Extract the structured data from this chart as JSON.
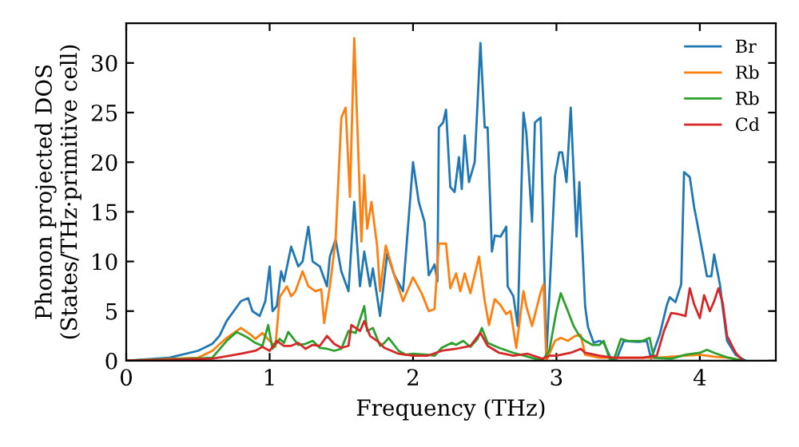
{
  "chart_data": {
    "type": "line",
    "xlabel": "Frequency (THz)",
    "ylabel": "Phonon projected DOS\n(States/THz·primitive cell)",
    "xlim": [
      0,
      4.53
    ],
    "ylim": [
      0,
      34
    ],
    "xticks": [
      0,
      1,
      2,
      3,
      4
    ],
    "yticks": [
      0,
      5,
      10,
      15,
      20,
      25,
      30
    ],
    "grid": false,
    "legend": "top right",
    "marker": "none",
    "line_style": "solid",
    "series": [
      {
        "name": "Br",
        "color": "#1f77b4",
        "x": [
          0,
          0.3,
          0.5,
          0.6,
          0.65,
          0.7,
          0.75,
          0.8,
          0.85,
          0.88,
          0.93,
          0.97,
          1.0,
          1.02,
          1.05,
          1.08,
          1.1,
          1.15,
          1.2,
          1.23,
          1.27,
          1.3,
          1.35,
          1.4,
          1.42,
          1.46,
          1.5,
          1.55,
          1.59,
          1.63,
          1.66,
          1.7,
          1.72,
          1.77,
          1.82,
          1.87,
          1.93,
          2.0,
          2.04,
          2.08,
          2.11,
          2.15,
          2.17,
          2.18,
          2.21,
          2.23,
          2.26,
          2.29,
          2.32,
          2.34,
          2.36,
          2.39,
          2.43,
          2.47,
          2.5,
          2.52,
          2.55,
          2.57,
          2.61,
          2.65,
          2.66,
          2.7,
          2.73,
          2.77,
          2.79,
          2.83,
          2.85,
          2.89,
          2.93,
          2.99,
          3.02,
          3.04,
          3.07,
          3.1,
          3.12,
          3.14,
          3.16,
          3.2,
          3.22,
          3.26,
          3.3,
          3.33,
          3.38,
          3.42,
          3.47,
          3.57,
          3.63,
          3.66,
          3.72,
          3.77,
          3.79,
          3.83,
          3.87,
          3.89,
          3.93,
          3.96,
          3.98,
          4.05,
          4.08,
          4.1,
          4.14,
          4.16,
          4.19,
          4.25,
          4.32
        ],
        "values": [
          0,
          0.3,
          1,
          1.7,
          2.5,
          4,
          5,
          6,
          6.3,
          5,
          4.5,
          6,
          9.5,
          5,
          5.5,
          9,
          8,
          11.5,
          9.5,
          10,
          13.5,
          10,
          9.5,
          7.5,
          10.5,
          12.2,
          9,
          7,
          16,
          7.5,
          11,
          7.5,
          9.3,
          4.5,
          10.8,
          8.6,
          7,
          20,
          16,
          14,
          8.6,
          9.7,
          8,
          23.5,
          24,
          25.3,
          17.5,
          17,
          20.5,
          17.3,
          22.7,
          18,
          20,
          32,
          23.5,
          23.5,
          11,
          12.6,
          12.5,
          13.5,
          7.5,
          6.5,
          3.5,
          25,
          23,
          14,
          24,
          24.5,
          0.3,
          18.6,
          21,
          21,
          18,
          25.5,
          19,
          12.5,
          18,
          5.5,
          3.4,
          1.8,
          2,
          1.8,
          0.2,
          0.2,
          2,
          1.9,
          2,
          0.2,
          2.6,
          5.6,
          6.4,
          5.9,
          7.7,
          19,
          18.5,
          15.5,
          14,
          8.5,
          8.5,
          10.7,
          7.7,
          5.3,
          2,
          0.6,
          0
        ]
      },
      {
        "name": "Rb",
        "color": "#ff7f0e",
        "x": [
          0,
          0.5,
          0.6,
          0.7,
          0.8,
          0.87,
          0.9,
          0.95,
          1.0,
          1.04,
          1.07,
          1.12,
          1.15,
          1.18,
          1.23,
          1.27,
          1.32,
          1.36,
          1.38,
          1.42,
          1.46,
          1.5,
          1.53,
          1.56,
          1.59,
          1.62,
          1.64,
          1.66,
          1.68,
          1.71,
          1.75,
          1.77,
          1.81,
          1.87,
          1.93,
          2.0,
          2.06,
          2.11,
          2.15,
          2.18,
          2.23,
          2.26,
          2.3,
          2.33,
          2.36,
          2.4,
          2.46,
          2.5,
          2.53,
          2.57,
          2.61,
          2.65,
          2.68,
          2.72,
          2.77,
          2.79,
          2.83,
          2.89,
          2.91,
          2.93,
          2.99,
          3.03,
          3.08,
          3.13,
          3.17,
          3.2,
          3.3,
          3.5,
          3.7,
          3.9,
          4.0,
          4.1,
          4.2,
          4.3
        ],
        "values": [
          0,
          0.3,
          1,
          2.3,
          3.3,
          2.6,
          2.2,
          2.8,
          2,
          1.4,
          6.4,
          7.5,
          6.5,
          7,
          9,
          7.5,
          7,
          7.2,
          3.8,
          7.5,
          12.2,
          24.5,
          25.5,
          16.5,
          32.5,
          20.3,
          12,
          18.7,
          13.3,
          16,
          11.5,
          7,
          11.6,
          8.6,
          6,
          8.4,
          6.8,
          5,
          5.2,
          11.8,
          11.8,
          7.3,
          8.8,
          7,
          8.8,
          6.8,
          10.5,
          6,
          3.6,
          6.2,
          5.6,
          4.7,
          5,
          1.3,
          7,
          5.5,
          3.5,
          6.9,
          7.7,
          0,
          2,
          2.3,
          2,
          2.5,
          2.6,
          0.6,
          0.3,
          0.3,
          0.3,
          0.5,
          0.6,
          0.4,
          0.3,
          0
        ]
      },
      {
        "name": "Rb",
        "color": "#2ca02c",
        "x": [
          0,
          0.6,
          0.7,
          0.77,
          0.85,
          0.9,
          0.95,
          0.99,
          1.02,
          1.07,
          1.1,
          1.13,
          1.2,
          1.25,
          1.3,
          1.35,
          1.4,
          1.45,
          1.5,
          1.55,
          1.6,
          1.66,
          1.68,
          1.72,
          1.77,
          1.8,
          1.83,
          1.9,
          1.95,
          2.0,
          2.1,
          2.15,
          2.2,
          2.27,
          2.3,
          2.35,
          2.4,
          2.45,
          2.48,
          2.52,
          2.6,
          2.7,
          2.8,
          2.9,
          2.95,
          3.0,
          3.03,
          3.08,
          3.12,
          3.16,
          3.2,
          3.25,
          3.3,
          3.33,
          3.37,
          3.4,
          3.45,
          3.5,
          3.6,
          3.65,
          3.68,
          3.8,
          3.9,
          4.0,
          4.05,
          4.1,
          4.2,
          4.3
        ],
        "values": [
          0,
          0.3,
          2,
          2.9,
          2.3,
          1.8,
          1.5,
          3.6,
          1.2,
          2.2,
          1.8,
          2.9,
          1.6,
          1.7,
          2,
          1.3,
          1.2,
          1,
          1.2,
          3,
          2.8,
          5.5,
          3,
          3.3,
          1.5,
          1.8,
          2.3,
          1,
          0.6,
          0.7,
          0.6,
          0.5,
          1.3,
          1.8,
          1.6,
          2,
          1.4,
          2.2,
          3.3,
          1.8,
          1.3,
          0.8,
          0.4,
          0,
          1,
          5,
          6.8,
          5,
          3.5,
          2.5,
          2,
          1.6,
          1.6,
          2,
          0.2,
          0.1,
          2.2,
          2,
          2,
          2.3,
          0.3,
          0.2,
          0.6,
          0.8,
          1.1,
          0.8,
          0.3,
          0
        ]
      },
      {
        "name": "Cd",
        "color": "#d62728",
        "x": [
          0,
          0.6,
          0.8,
          0.9,
          0.95,
          1.0,
          1.05,
          1.1,
          1.15,
          1.2,
          1.25,
          1.3,
          1.35,
          1.4,
          1.45,
          1.5,
          1.55,
          1.57,
          1.63,
          1.66,
          1.7,
          1.75,
          1.8,
          1.9,
          2.0,
          2.1,
          2.2,
          2.3,
          2.4,
          2.47,
          2.52,
          2.6,
          2.7,
          2.8,
          2.9,
          2.95,
          3.0,
          3.1,
          3.17,
          3.2,
          3.3,
          3.4,
          3.6,
          3.7,
          3.75,
          3.8,
          3.85,
          3.9,
          3.93,
          3.96,
          4.0,
          4.03,
          4.07,
          4.1,
          4.13,
          4.16,
          4.19,
          4.25,
          4.3
        ],
        "values": [
          0,
          0.2,
          0.7,
          1,
          1.4,
          1,
          2,
          1.5,
          1.5,
          1.8,
          1.2,
          1.6,
          1.5,
          2.5,
          1.7,
          1.3,
          1.5,
          3.6,
          3,
          4,
          2.5,
          2,
          1.3,
          0.7,
          0.5,
          0.5,
          1,
          1.2,
          1.5,
          2.8,
          1.5,
          0.8,
          0.5,
          0.7,
          0.2,
          0.5,
          0.5,
          0.8,
          1.2,
          0.8,
          0.5,
          0.3,
          0.3,
          0.5,
          3,
          4.8,
          4.7,
          4.5,
          7.3,
          5.7,
          4.3,
          6.6,
          5,
          6,
          7.3,
          5.8,
          2.5,
          0.8,
          0
        ]
      }
    ]
  }
}
